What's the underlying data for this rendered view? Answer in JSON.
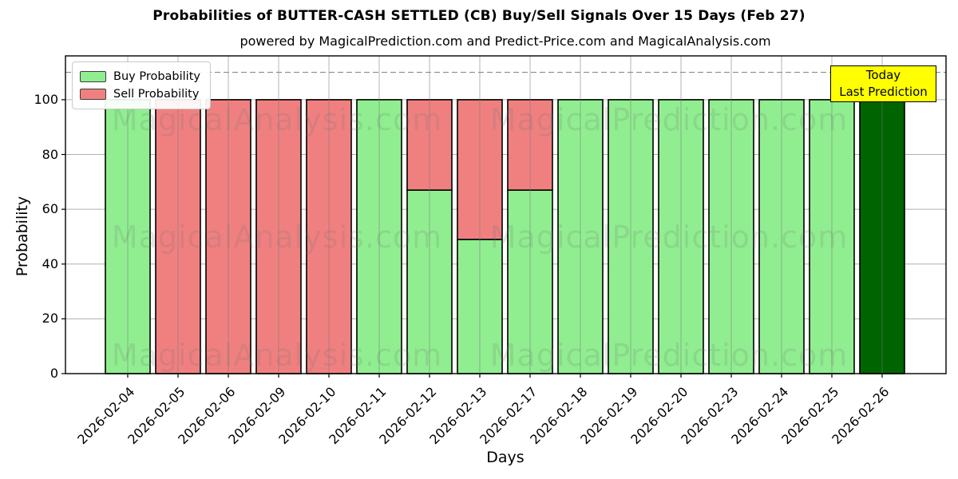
{
  "title": "Probabilities of BUTTER-CASH SETTLED (CB) Buy/Sell Signals Over 15 Days (Feb 27)",
  "subtitle": "powered by MagicalPrediction.com and Predict-Price.com and MagicalAnalysis.com",
  "legend": {
    "items": [
      {
        "label": "Buy Probability",
        "color": "#90EE90"
      },
      {
        "label": "Sell Probability",
        "color": "#F08080"
      }
    ]
  },
  "today_box": {
    "line1": "Today",
    "line2": "Last Prediction",
    "bg_color": "#FFFF00"
  },
  "watermarks": {
    "left": "MagicalAnalysis.com",
    "right": "MagicalPrediction.com"
  },
  "chart_data": {
    "type": "bar",
    "stacked": true,
    "title": "Probabilities of BUTTER-CASH SETTLED (CB) Buy/Sell Signals Over 15 Days (Feb 27)",
    "xlabel": "Days",
    "ylabel": "Probability",
    "categories": [
      "2026-02-04",
      "2026-02-05",
      "2026-02-06",
      "2026-02-09",
      "2026-02-10",
      "2026-02-11",
      "2026-02-12",
      "2026-02-13",
      "2026-02-17",
      "2026-02-18",
      "2026-02-19",
      "2026-02-20",
      "2026-02-23",
      "2026-02-24",
      "2026-02-25",
      "2026-02-26"
    ],
    "series": [
      {
        "name": "Buy Probability",
        "color": "#90EE90",
        "values": [
          100,
          0,
          0,
          0,
          0,
          100,
          67,
          49,
          67,
          100,
          100,
          100,
          100,
          100,
          100,
          100
        ]
      },
      {
        "name": "Sell Probability",
        "color": "#F08080",
        "values": [
          0,
          100,
          100,
          100,
          100,
          0,
          33,
          51,
          33,
          0,
          0,
          0,
          0,
          0,
          0,
          0
        ]
      }
    ],
    "highlight_last_bar": {
      "category": "2026-02-26",
      "color": "#006400",
      "label": "Today Last Prediction"
    },
    "yticks": [
      0,
      20,
      40,
      60,
      80,
      100
    ],
    "ylim": [
      0,
      116
    ],
    "dashed_guide_y": 110,
    "grid": true,
    "legend_position": "upper left",
    "bar_edge_color": "#000000"
  }
}
